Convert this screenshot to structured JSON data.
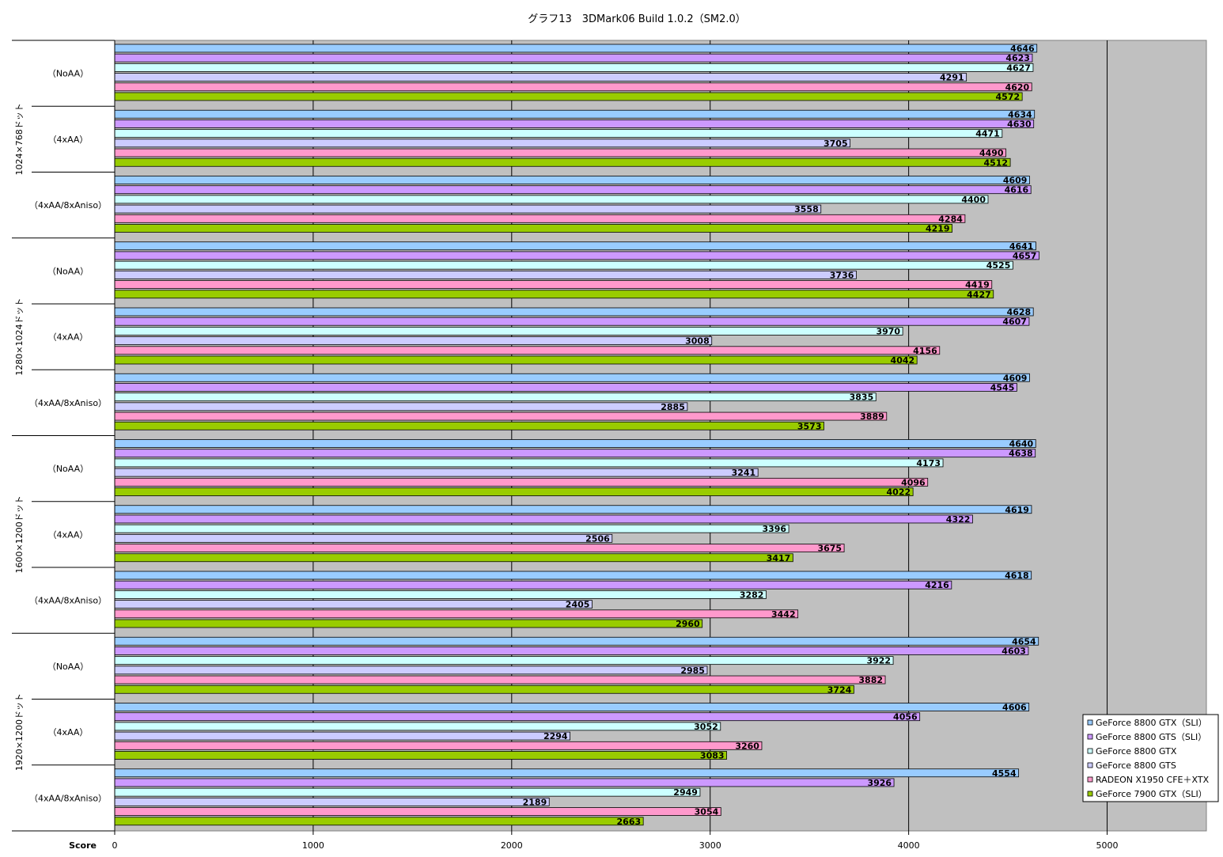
{
  "chart_data": {
    "type": "bar",
    "orientation": "horizontal",
    "title": "グラフ13　3DMark06 Build 1.0.2（SM2.0）",
    "xlabel": "Score",
    "xlim": [
      0,
      5500
    ],
    "xticks": [
      0,
      1000,
      2000,
      3000,
      4000,
      5000
    ],
    "grid": true,
    "legend_position": "bottom-right",
    "groups": [
      {
        "label": "1024×768ドット",
        "categories": [
          "（NoAA）",
          "（4xAA）",
          "（4xAA/8xAniso）"
        ]
      },
      {
        "label": "1280×1024ドット",
        "categories": [
          "（NoAA）",
          "（4xAA）",
          "（4xAA/8xAniso）"
        ]
      },
      {
        "label": "1600×1200ドット",
        "categories": [
          "（NoAA）",
          "（4xAA）",
          "（4xAA/8xAniso）"
        ]
      },
      {
        "label": "1920×1200ドット",
        "categories": [
          "（NoAA）",
          "（4xAA）",
          "（4xAA/8xAniso）"
        ]
      }
    ],
    "series": [
      {
        "name": "GeForce 8800 GTX（SLI）",
        "color": "#99ccff",
        "values": [
          4646,
          4634,
          4609,
          4641,
          4628,
          4609,
          4640,
          4619,
          4618,
          4654,
          4606,
          4554
        ]
      },
      {
        "name": "GeForce 8800 GTS（SLI）",
        "color": "#cc99ff",
        "values": [
          4623,
          4630,
          4616,
          4657,
          4607,
          4545,
          4638,
          4322,
          4216,
          4603,
          4056,
          3926
        ]
      },
      {
        "name": "GeForce 8800 GTX",
        "color": "#ccffff",
        "values": [
          4627,
          4471,
          4400,
          4525,
          3970,
          3835,
          4173,
          3396,
          3282,
          3922,
          3052,
          2949
        ]
      },
      {
        "name": "GeForce 8800 GTS",
        "color": "#ccccff",
        "values": [
          4291,
          3705,
          3558,
          3736,
          3008,
          2885,
          3241,
          2506,
          2405,
          2985,
          2294,
          2189
        ]
      },
      {
        "name": "RADEON X1950 CFE＋XTX",
        "color": "#ff99cc",
        "values": [
          4620,
          4490,
          4284,
          4419,
          4156,
          3889,
          4096,
          3675,
          3442,
          3882,
          3260,
          3054
        ]
      },
      {
        "name": "GeForce 7900 GTX（SLI）",
        "color": "#99cc00",
        "values": [
          4572,
          4512,
          4219,
          4427,
          4042,
          3573,
          4022,
          3417,
          2960,
          3724,
          3083,
          2663
        ]
      }
    ]
  }
}
